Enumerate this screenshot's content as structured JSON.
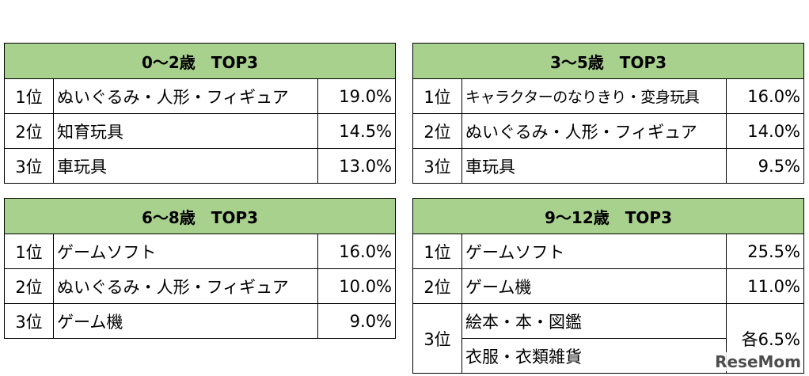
{
  "tables": [
    {
      "title": "0～2歳　TOP3",
      "rows": [
        {
          "rank": "1位",
          "item": "ぬいぐるみ・人形・フィギュア",
          "pct": "19.0%"
        },
        {
          "rank": "2位",
          "item": "知育玩具",
          "pct": "14.5%"
        },
        {
          "rank": "3位",
          "item": "車玩具",
          "pct": "13.0%"
        }
      ]
    },
    {
      "title": "3～5歳　TOP3",
      "rows": [
        {
          "rank": "1位",
          "item": "キャラクターのなりきり・変身玩具",
          "pct": "16.0%"
        },
        {
          "rank": "2位",
          "item": "ぬいぐるみ・人形・フィギュア",
          "pct": "14.0%"
        },
        {
          "rank": "3位",
          "item": "車玩具",
          "pct": "9.5%"
        }
      ]
    },
    {
      "title": "6～8歳　TOP3",
      "rows": [
        {
          "rank": "1位",
          "item": "ゲームソフト",
          "pct": "16.0%"
        },
        {
          "rank": "2位",
          "item": "ぬいぐるみ・人形・フィギュア",
          "pct": "10.0%"
        },
        {
          "rank": "3位",
          "item": "ゲーム機",
          "pct": "9.0%"
        }
      ]
    },
    {
      "title": "9～12歳　TOP3",
      "rows": [
        {
          "rank": "1位",
          "item": "ゲームソフト",
          "pct": "25.5%"
        },
        {
          "rank": "2位",
          "item": "ゲーム機",
          "pct": "11.0%"
        }
      ],
      "tie": {
        "rank": "3位",
        "items": [
          "絵本・本・図鑑",
          "衣服・衣類雑貨"
        ],
        "pct": "各6.5%"
      }
    }
  ],
  "logo": "ReseMom",
  "colors": {
    "header_bg": "#a9d18e",
    "border": "#000000"
  }
}
